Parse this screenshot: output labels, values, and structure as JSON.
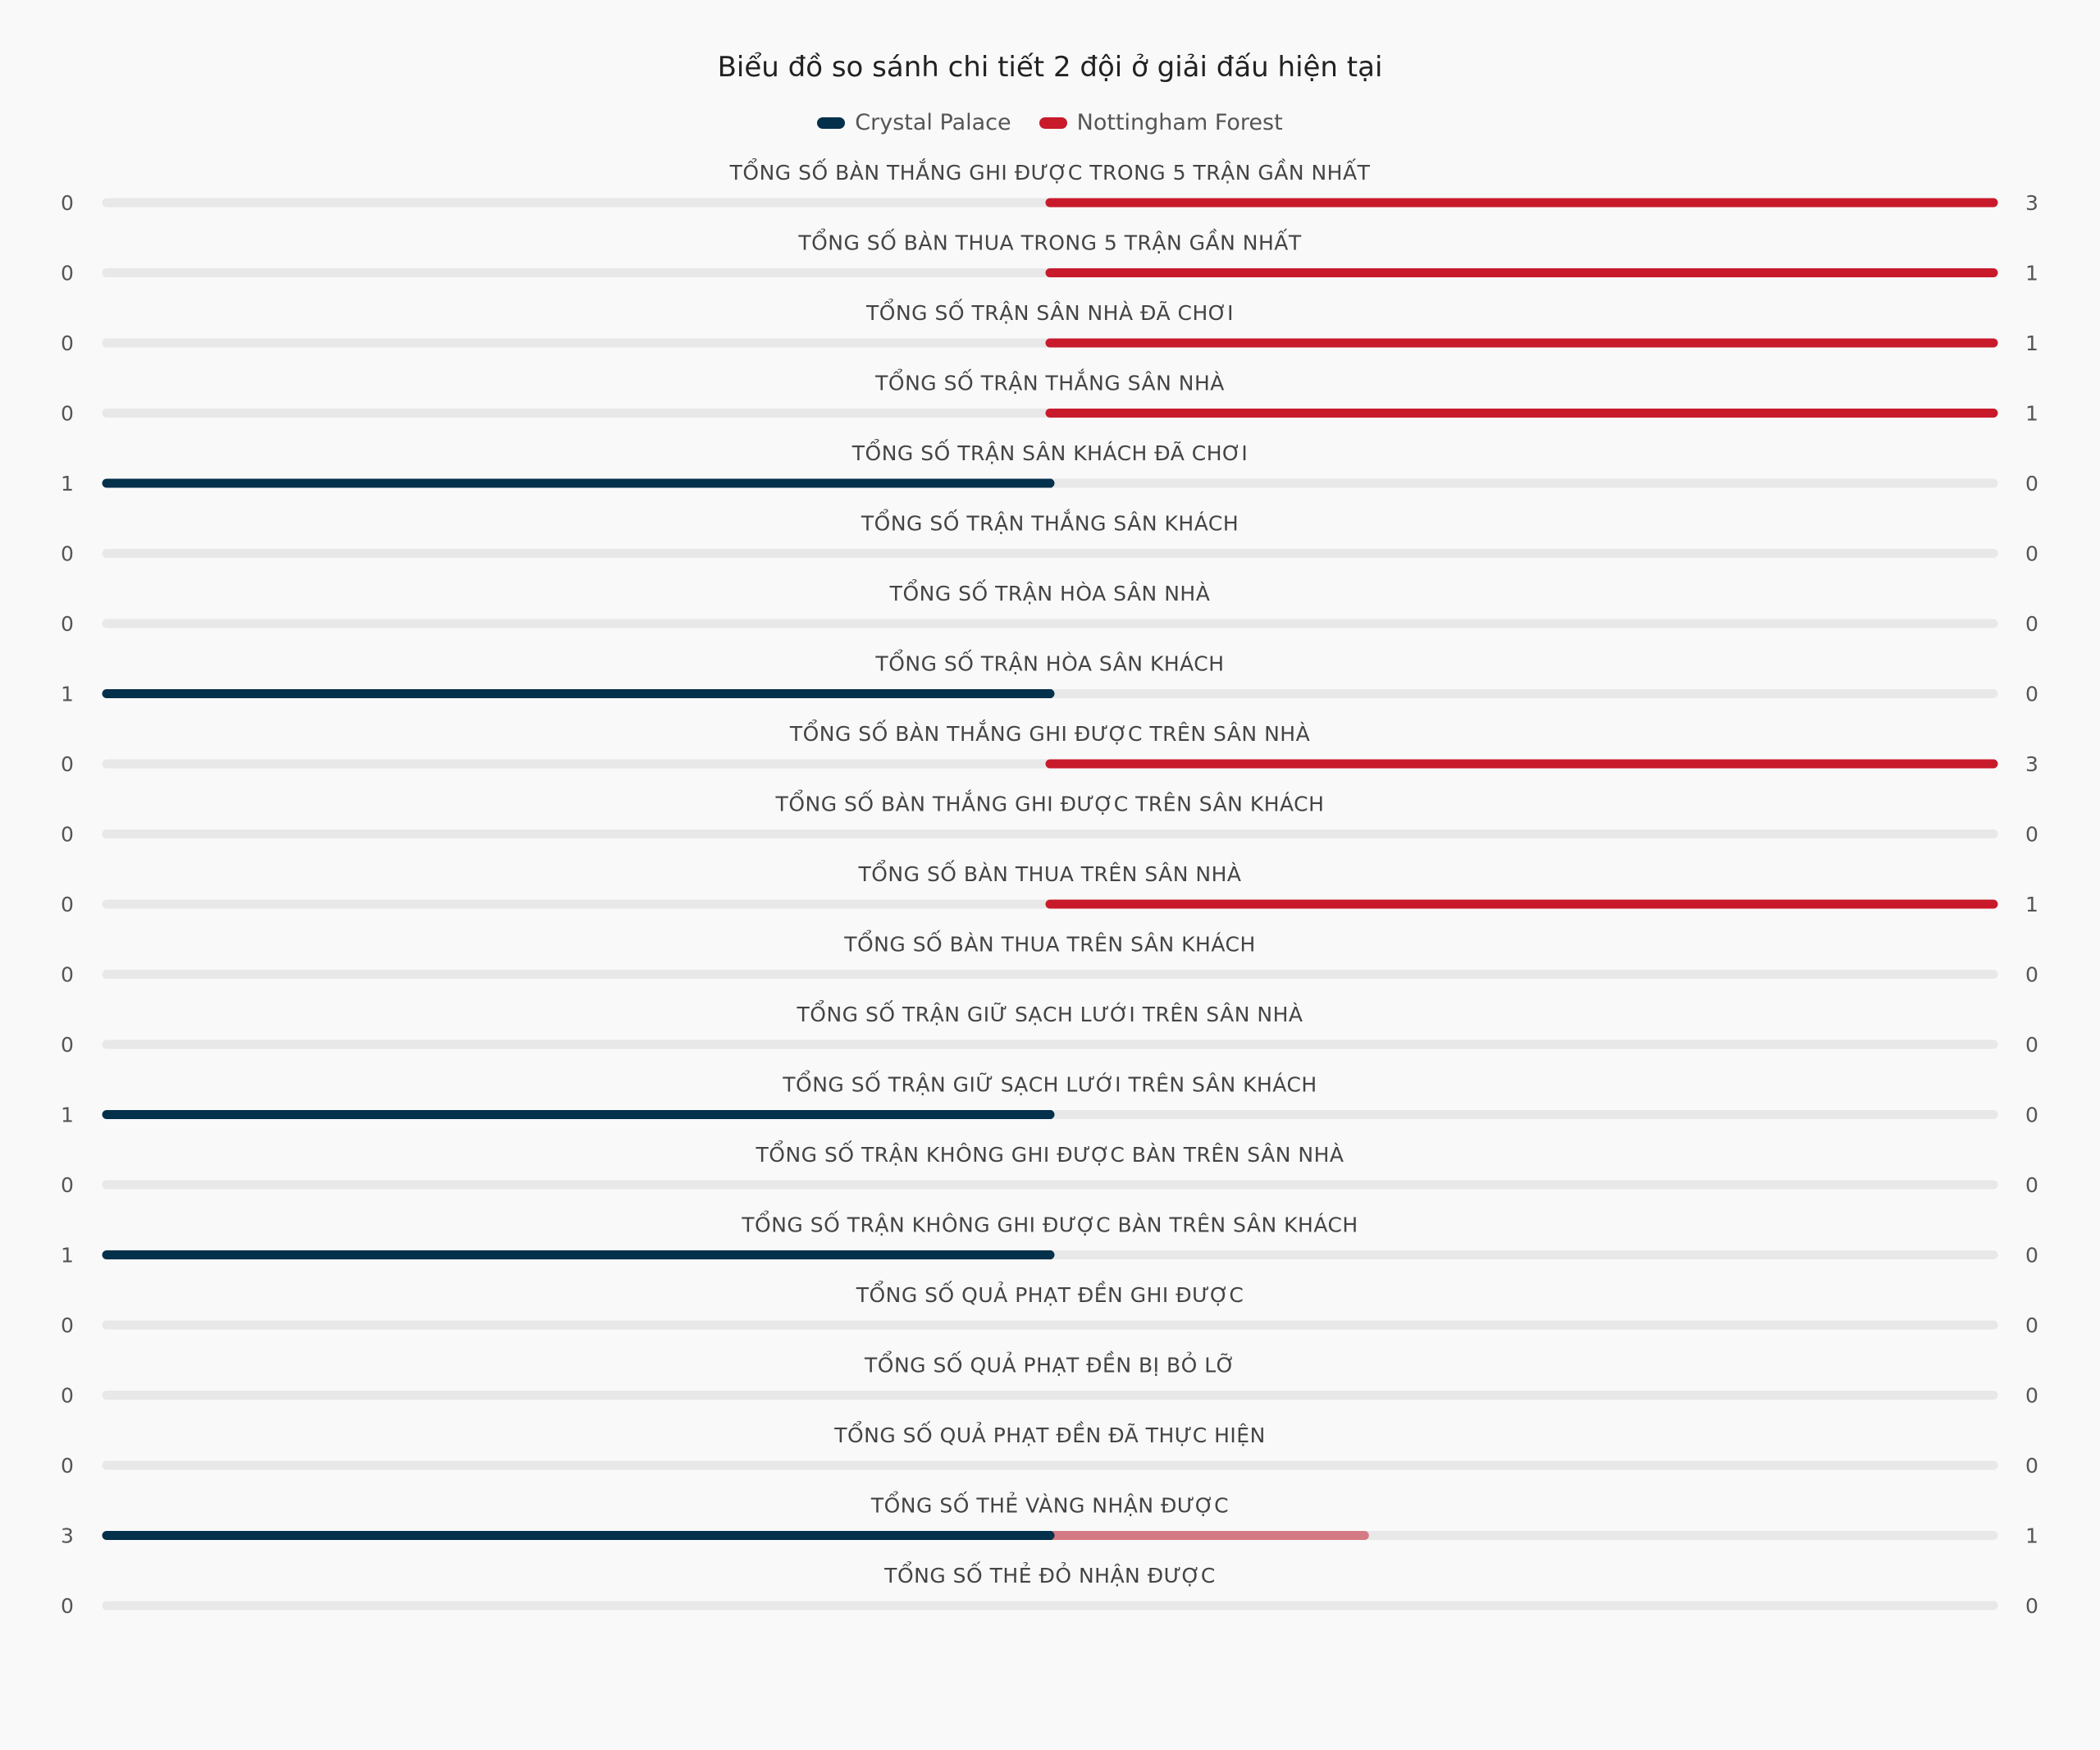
{
  "chart_data": {
    "type": "bar",
    "title": "Biểu đồ so sánh chi tiết 2 đội ở giải đấu hiện tại",
    "legend_position": "top",
    "series": [
      {
        "name": "Crystal Palace",
        "color": "#03304b"
      },
      {
        "name": "Nottingham Forest",
        "color": "#c81a2b"
      }
    ],
    "categories": [
      "TỔNG SỐ BÀN THẮNG GHI ĐƯỢC TRONG 5 TRẬN GẦN NHẤT",
      "TỔNG SỐ BÀN THUA TRONG 5 TRẬN GẦN NHẤT",
      "TỔNG SỐ TRẬN SÂN NHÀ ĐÃ CHƠI",
      "TỔNG SỐ TRẬN THẮNG SÂN NHÀ",
      "TỔNG SỐ TRẬN SÂN KHÁCH ĐÃ CHƠI",
      "TỔNG SỐ TRẬN THẮNG SÂN KHÁCH",
      "TỔNG SỐ TRẬN HÒA SÂN NHÀ",
      "TỔNG SỐ TRẬN HÒA SÂN KHÁCH",
      "TỔNG SỐ BÀN THẮNG GHI ĐƯỢC TRÊN SÂN NHÀ",
      "TỔNG SỐ BÀN THẮNG GHI ĐƯỢC TRÊN SÂN KHÁCH",
      "TỔNG SỐ BÀN THUA TRÊN SÂN NHÀ",
      "TỔNG SỐ BÀN THUA TRÊN SÂN KHÁCH",
      "TỔNG SỐ TRẬN GIỮ SẠCH LƯỚI TRÊN SÂN NHÀ",
      "TỔNG SỐ TRẬN GIỮ SẠCH LƯỚI TRÊN SÂN KHÁCH",
      "TỔNG SỐ TRẬN KHÔNG GHI ĐƯỢC BÀN TRÊN SÂN NHÀ",
      "TỔNG SỐ TRẬN KHÔNG GHI ĐƯỢC BÀN TRÊN SÂN KHÁCH",
      "TỔNG SỐ QUẢ PHẠT ĐỀN GHI ĐƯỢC",
      "TỔNG SỐ QUẢ PHẠT ĐỀN BỊ BỎ LỠ",
      "TỔNG SỐ QUẢ PHẠT ĐỀN ĐÃ THỰC HIỆN",
      "TỔNG SỐ THẺ VÀNG NHẬN ĐƯỢC",
      "TỔNG SỐ THẺ ĐỎ NHẬN ĐƯỢC"
    ],
    "left_values": [
      0,
      0,
      0,
      0,
      1,
      0,
      0,
      1,
      0,
      0,
      0,
      0,
      0,
      1,
      0,
      1,
      0,
      0,
      0,
      3,
      0
    ],
    "right_values": [
      3,
      1,
      1,
      1,
      0,
      0,
      0,
      0,
      3,
      0,
      1,
      0,
      0,
      0,
      0,
      0,
      0,
      0,
      0,
      1,
      0
    ],
    "track_color": "#e8e8e8",
    "minor_right_color": "#d47a84"
  }
}
